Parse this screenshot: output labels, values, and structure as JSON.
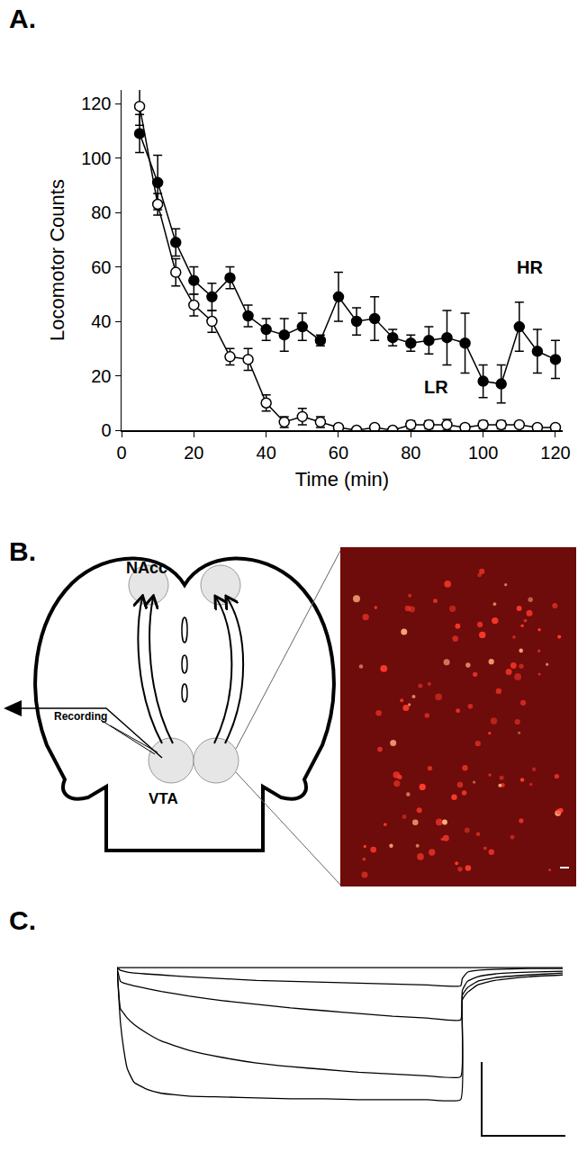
{
  "panel_labels": [
    "A.",
    "B.",
    "C."
  ],
  "chart_data": [
    {
      "type": "line",
      "x_label": "Time (min)",
      "y_label": "Locomotor Counts",
      "x": [
        5,
        10,
        15,
        20,
        25,
        30,
        35,
        40,
        45,
        50,
        55,
        60,
        65,
        70,
        75,
        80,
        85,
        90,
        95,
        100,
        105,
        110,
        115,
        120
      ],
      "series": [
        {
          "name": "HR",
          "color": "#000000",
          "marker": "filled",
          "values": [
            109,
            91,
            69,
            55,
            49,
            56,
            42,
            37,
            35,
            38,
            33,
            49,
            40,
            41,
            34,
            32,
            33,
            34,
            32,
            18,
            17,
            38,
            29,
            26
          ],
          "error": [
            7,
            10,
            5,
            5,
            5,
            4,
            4,
            4,
            6,
            5,
            2,
            9,
            5,
            8,
            3,
            3,
            5,
            10,
            11,
            6,
            7,
            9,
            8,
            7
          ]
        },
        {
          "name": "LR",
          "color": "#000000",
          "marker": "open",
          "values": [
            119,
            83,
            58,
            46,
            40,
            27,
            26,
            10,
            3,
            5,
            3,
            1,
            0,
            1,
            0,
            2,
            2,
            2,
            1,
            2,
            2,
            2,
            1,
            1
          ],
          "error": [
            7,
            4,
            5,
            4,
            4,
            3,
            4,
            3,
            2,
            3,
            2,
            1,
            1,
            1,
            0.5,
            1.5,
            1.5,
            2,
            1,
            1.5,
            1.5,
            1,
            1,
            1
          ]
        }
      ],
      "annotations": [
        {
          "text": "HR",
          "x": 113,
          "y": 60
        },
        {
          "text": "LR",
          "x": 87,
          "y": 16
        }
      ],
      "xlim": [
        0,
        122
      ],
      "ylim": [
        0,
        125
      ],
      "xticks": [
        0,
        20,
        40,
        60,
        80,
        100,
        120
      ],
      "yticks": [
        0,
        20,
        40,
        60,
        80,
        100,
        120
      ],
      "grid": false
    },
    {
      "type": "line",
      "x": [
        -1,
        0,
        1,
        2,
        4,
        8,
        12,
        20,
        30,
        40,
        50,
        60,
        70,
        80,
        90,
        100,
        100.5,
        102,
        105,
        110,
        120,
        130
      ],
      "series": [
        {
          "color": "#000000",
          "values": [
            0,
            0,
            0,
            0,
            0,
            0,
            0,
            0,
            0,
            0,
            0,
            0,
            0,
            0,
            0,
            0,
            0,
            0,
            0,
            0,
            0,
            0
          ]
        },
        {
          "color": "#000000",
          "values": [
            0,
            -3,
            -4,
            -5,
            -6,
            -7,
            -8,
            -10,
            -12,
            -14,
            -15,
            -16,
            -17,
            -18,
            -19,
            -20,
            -12,
            -5,
            -3,
            -2,
            -1,
            -1
          ]
        },
        {
          "color": "#000000",
          "values": [
            0,
            -15,
            -17,
            -18,
            -20,
            -23,
            -26,
            -31,
            -36,
            -40,
            -44,
            -47,
            -50,
            -53,
            -55,
            -57,
            -25,
            -15,
            -10,
            -7,
            -5,
            -4
          ]
        },
        {
          "color": "#000000",
          "values": [
            0,
            -45,
            -50,
            -55,
            -62,
            -72,
            -80,
            -90,
            -98,
            -104,
            -108,
            -111,
            -114,
            -116,
            -118,
            -119,
            -30,
            -22,
            -15,
            -11,
            -8,
            -6
          ]
        },
        {
          "color": "#000000",
          "values": [
            0,
            -60,
            -90,
            -110,
            -125,
            -133,
            -137,
            -140,
            -141,
            -142,
            -143,
            -143,
            -144,
            -144,
            -144,
            -144,
            -35,
            -27,
            -19,
            -14,
            -10,
            -8
          ]
        }
      ],
      "xlim": [
        -1,
        130
      ],
      "ylim": [
        -150,
        5
      ],
      "tick_labels": false
    }
  ],
  "diagram": {
    "labels": {
      "nacc": "NAcc",
      "recording": "Recording",
      "vta": "VTA"
    }
  }
}
